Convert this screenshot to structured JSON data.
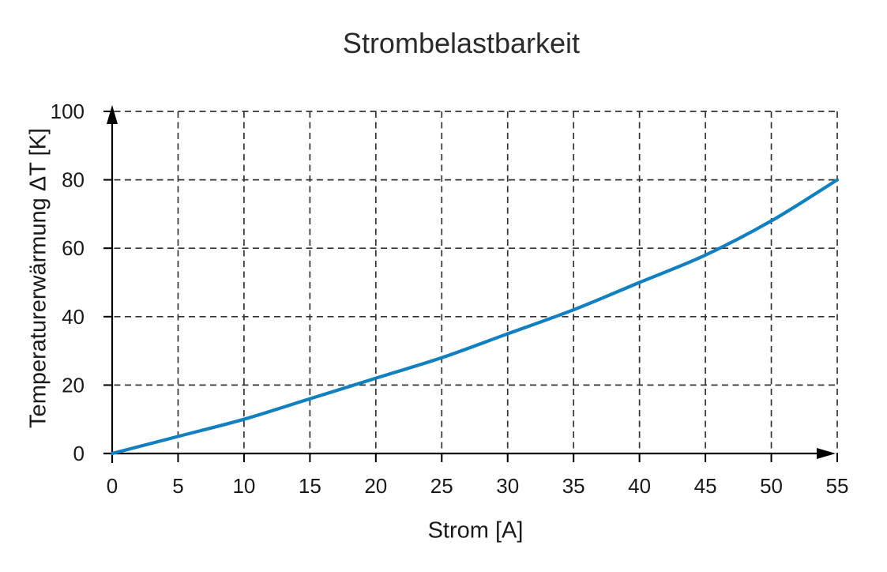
{
  "chart_data": {
    "type": "line",
    "title": "Strombelastbarkeit",
    "xlabel": "Strom [A]",
    "ylabel": "Temperaturerwärmung ΔT [K]",
    "xlim": [
      0,
      55
    ],
    "ylim": [
      0,
      100
    ],
    "xticks": [
      0,
      5,
      10,
      15,
      20,
      25,
      30,
      35,
      40,
      45,
      50,
      55
    ],
    "yticks": [
      0,
      20,
      40,
      60,
      80,
      100
    ],
    "grid": "dashed",
    "legend_position": "none",
    "series": [
      {
        "name": "Temperaturerwärmung",
        "x": [
          0,
          5,
          10,
          15,
          20,
          25,
          30,
          35,
          40,
          45,
          50,
          55
        ],
        "y": [
          0,
          5,
          10,
          16,
          22,
          28,
          35,
          42,
          50,
          58,
          68,
          80
        ],
        "color": "#117fc0"
      }
    ],
    "colors": {
      "line": "#117fc0",
      "grid": "#333333",
      "axis": "#000000",
      "text": "#1a1a1a",
      "background": "#ffffff"
    }
  }
}
